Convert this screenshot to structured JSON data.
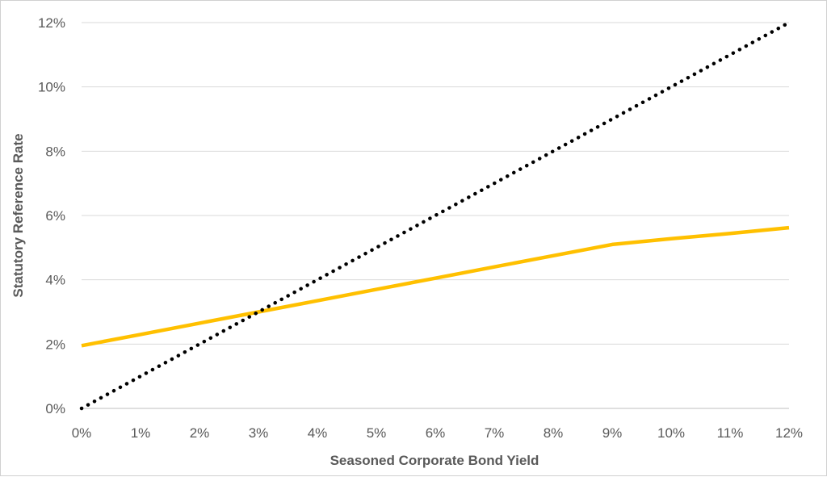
{
  "chart_data": {
    "type": "line",
    "title": "",
    "xlabel": "Seasoned Corporate Bond Yield",
    "ylabel": "Statutory Reference Rate",
    "xlim": [
      0,
      12
    ],
    "ylim": [
      0,
      12
    ],
    "x_ticks": [
      0,
      1,
      2,
      3,
      4,
      5,
      6,
      7,
      8,
      9,
      10,
      11,
      12
    ],
    "y_ticks": [
      0,
      2,
      4,
      6,
      8,
      10,
      12
    ],
    "x_tick_labels": [
      "0%",
      "1%",
      "2%",
      "3%",
      "4%",
      "5%",
      "6%",
      "7%",
      "8%",
      "9%",
      "10%",
      "11%",
      "12%"
    ],
    "y_tick_labels": [
      "0%",
      "2%",
      "4%",
      "6%",
      "8%",
      "10%",
      "12%"
    ],
    "grid": "horizontal",
    "legend": "none",
    "series": [
      {
        "style": "solid",
        "color": "#FFC000",
        "x": [
          0,
          1,
          2,
          3,
          4,
          5,
          6,
          7,
          8,
          9,
          10,
          11,
          12
        ],
        "y": [
          1.95,
          2.3,
          2.65,
          3.0,
          3.35,
          3.7,
          4.05,
          4.4,
          4.75,
          5.1,
          5.28,
          5.44,
          5.62
        ]
      },
      {
        "style": "dotted",
        "color": "#000000",
        "x": [
          0,
          12
        ],
        "y": [
          0,
          12
        ]
      }
    ]
  }
}
